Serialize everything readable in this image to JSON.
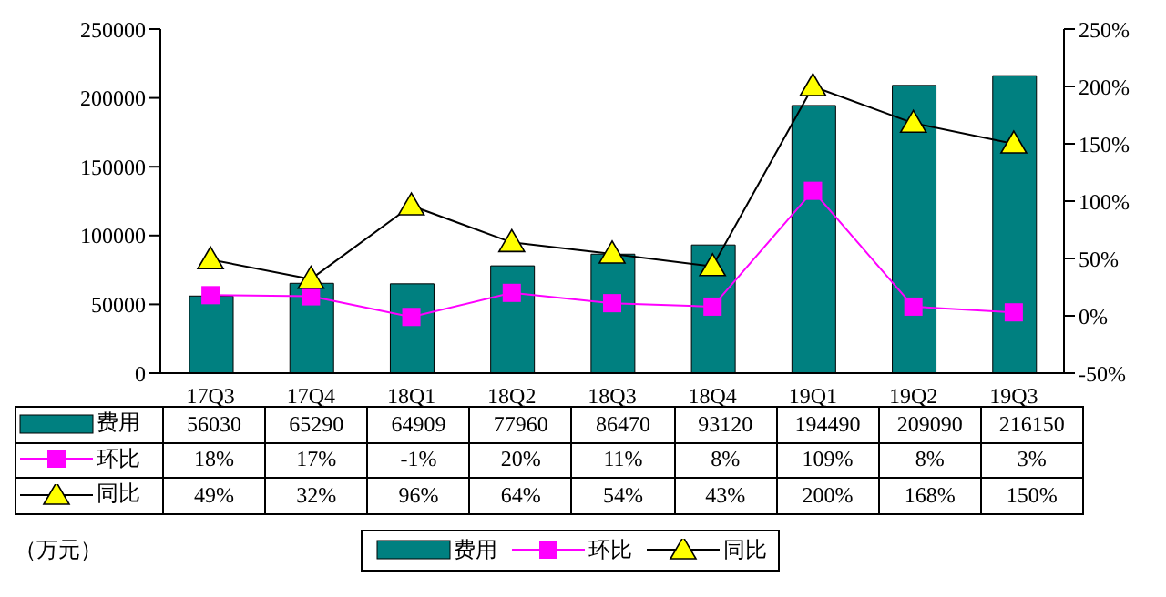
{
  "chart_data": {
    "type": "bar",
    "annotations": [
      "（万元）"
    ],
    "categories": [
      "17Q3",
      "17Q4",
      "18Q1",
      "18Q2",
      "18Q3",
      "18Q4",
      "19Q1",
      "19Q2",
      "19Q3"
    ],
    "series": [
      {
        "name": "费用",
        "color": "#008080",
        "values": [
          56030,
          65290,
          64909,
          77960,
          86470,
          93120,
          194490,
          209090,
          216150
        ],
        "value_labels": [
          "56030",
          "65290",
          "64909",
          "77960",
          "86470",
          "93120",
          "194490",
          "209090",
          "216150"
        ]
      },
      {
        "name": "环比",
        "type": "line",
        "axis": "y2",
        "marker": "square",
        "color": "#ff00ff",
        "values": [
          18,
          17,
          -1,
          20,
          11,
          8,
          109,
          8,
          3
        ],
        "value_labels": [
          "18%",
          "17%",
          "-1%",
          "20%",
          "11%",
          "8%",
          "109%",
          "8%",
          "3%"
        ]
      },
      {
        "name": "同比",
        "type": "line",
        "axis": "y2",
        "marker": "triangle",
        "color": "#ffff00",
        "values": [
          49,
          32,
          96,
          64,
          54,
          43,
          200,
          168,
          150
        ],
        "value_labels": [
          "49%",
          "32%",
          "96%",
          "64%",
          "54%",
          "43%",
          "200%",
          "168%",
          "150%"
        ]
      }
    ],
    "ylim": [
      0,
      250000
    ],
    "yticks": [
      0,
      50000,
      100000,
      150000,
      200000,
      250000
    ],
    "y2lim": [
      -50,
      250
    ],
    "y2ticks": [
      {
        "value": -50,
        "label": "-50%"
      },
      {
        "value": 0,
        "label": "0%"
      },
      {
        "value": 50,
        "label": "50%"
      },
      {
        "value": 100,
        "label": "100%"
      },
      {
        "value": 150,
        "label": "150%"
      },
      {
        "value": 200,
        "label": "200%"
      },
      {
        "value": 250,
        "label": "250%"
      }
    ],
    "legend": "bottom"
  }
}
